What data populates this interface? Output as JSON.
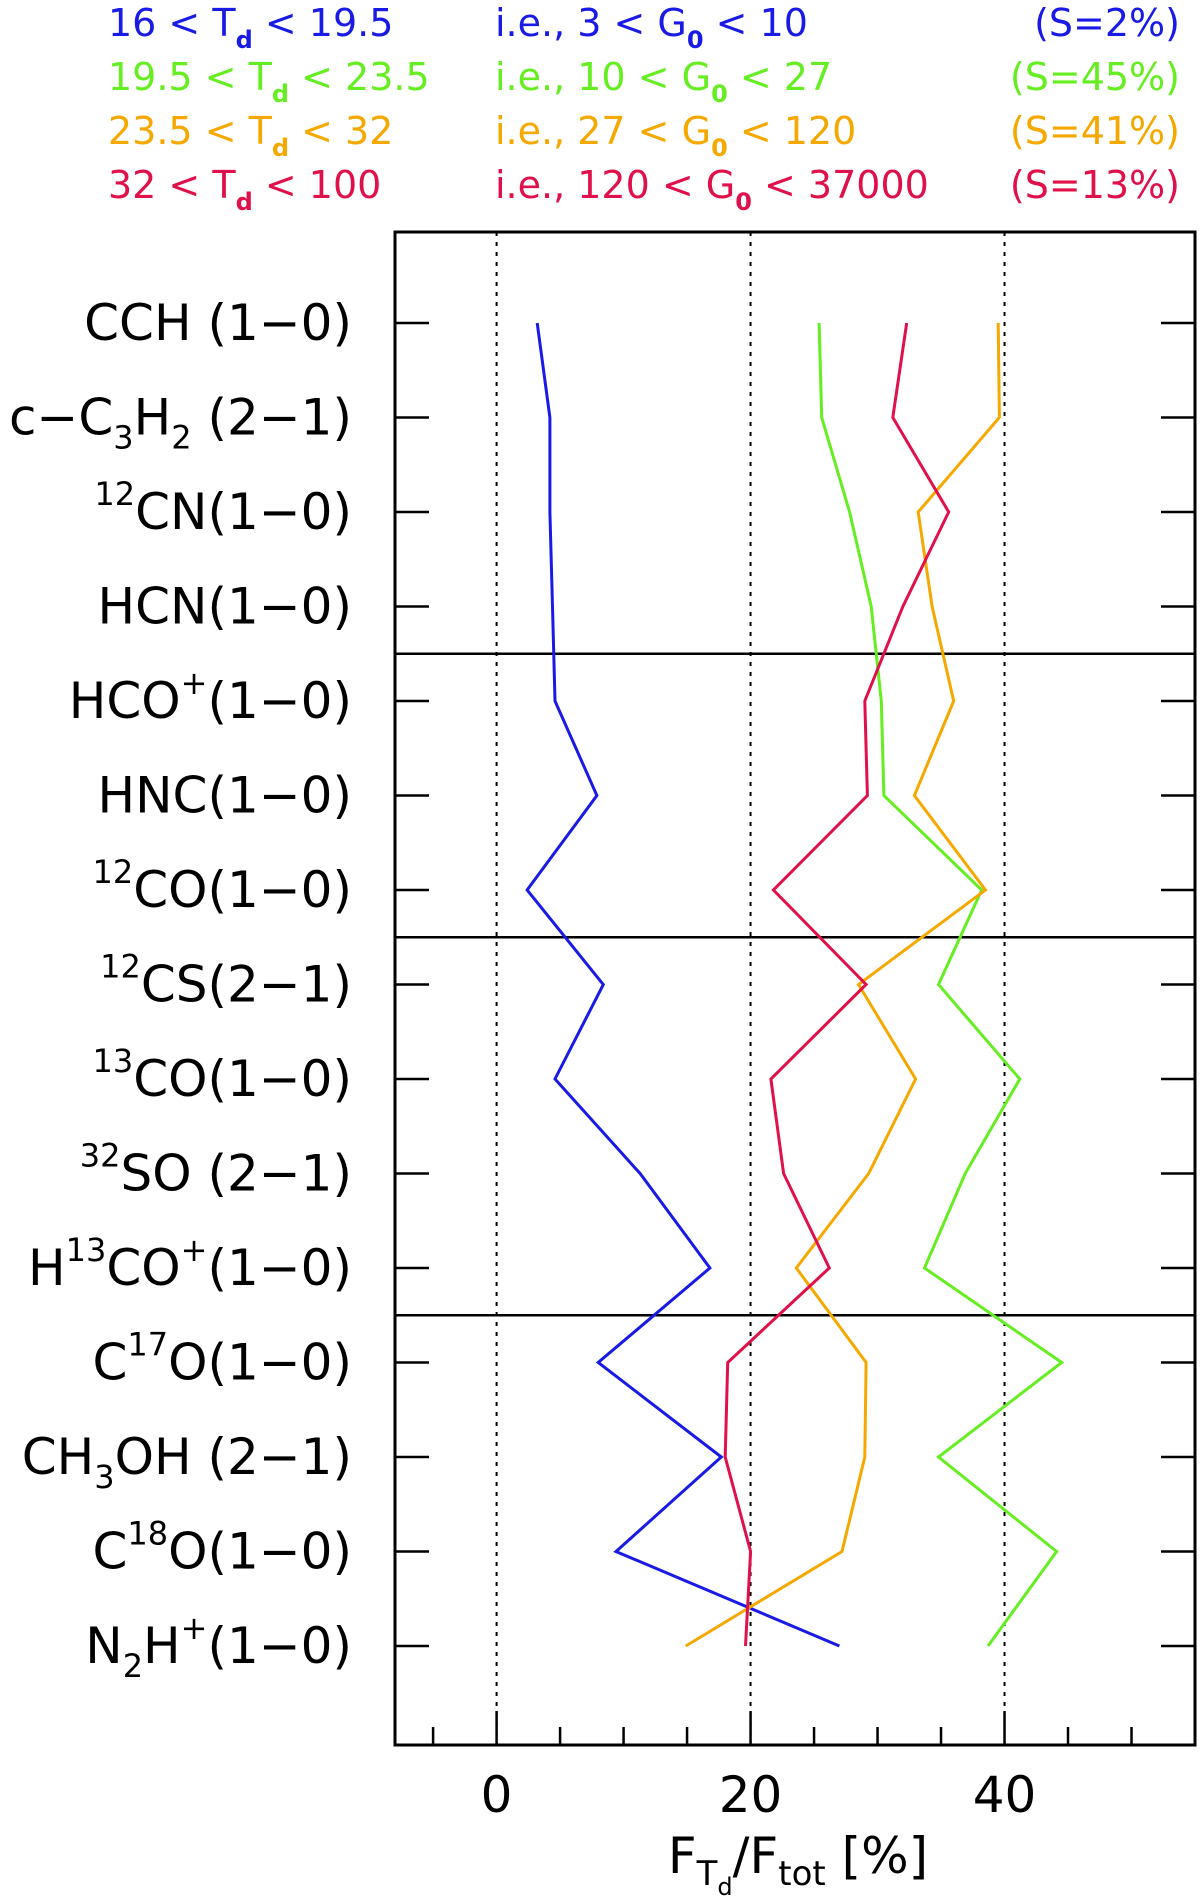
{
  "chart_data": {
    "type": "line",
    "orientation": "horizontal",
    "title": "",
    "xlabel": {
      "main": "F",
      "sub": "T",
      "subsub": "d",
      "rest": "/F",
      "sub2": "tot",
      "unit": "[%]"
    },
    "xlim": [
      -8,
      55
    ],
    "xticks": [
      0,
      20,
      40
    ],
    "xtick_labels": [
      "0",
      "20",
      "40"
    ],
    "minor_xticks": [
      -5,
      5,
      10,
      15,
      25,
      30,
      35,
      45,
      50
    ],
    "vertical_dotted_lines": [
      0,
      20,
      40
    ],
    "group_separator_after_index": [
      3,
      6,
      10
    ],
    "categories": [
      {
        "id": "cch",
        "parts": [
          {
            "t": "CCH (1−0)"
          }
        ]
      },
      {
        "id": "c3h2",
        "parts": [
          {
            "t": "c−C"
          },
          {
            "t": "3",
            "sub": true
          },
          {
            "t": "H"
          },
          {
            "t": "2",
            "sub": true
          },
          {
            "t": " (2−1)"
          }
        ]
      },
      {
        "id": "cn",
        "parts": [
          {
            "t": "12",
            "sup": true
          },
          {
            "t": "CN(1−0)"
          }
        ]
      },
      {
        "id": "hcn",
        "parts": [
          {
            "t": "HCN(1−0)"
          }
        ]
      },
      {
        "id": "hcop",
        "parts": [
          {
            "t": "HCO"
          },
          {
            "t": "+",
            "sup": true
          },
          {
            "t": "(1−0)"
          }
        ]
      },
      {
        "id": "hnc",
        "parts": [
          {
            "t": "HNC(1−0)"
          }
        ]
      },
      {
        "id": "co12",
        "parts": [
          {
            "t": "12",
            "sup": true
          },
          {
            "t": "CO(1−0)"
          }
        ]
      },
      {
        "id": "cs12",
        "parts": [
          {
            "t": "12",
            "sup": true
          },
          {
            "t": "CS(2−1)"
          }
        ]
      },
      {
        "id": "co13",
        "parts": [
          {
            "t": "13",
            "sup": true
          },
          {
            "t": "CO(1−0)"
          }
        ]
      },
      {
        "id": "so32",
        "parts": [
          {
            "t": "32",
            "sup": true
          },
          {
            "t": "SO (2−1)"
          }
        ]
      },
      {
        "id": "h13cop",
        "parts": [
          {
            "t": "H"
          },
          {
            "t": "13",
            "sup": true
          },
          {
            "t": "CO"
          },
          {
            "t": "+",
            "sup": true
          },
          {
            "t": "(1−0)"
          }
        ]
      },
      {
        "id": "c17o",
        "parts": [
          {
            "t": "C"
          },
          {
            "t": "17",
            "sup": true
          },
          {
            "t": "O(1−0)"
          }
        ]
      },
      {
        "id": "ch3oh",
        "parts": [
          {
            "t": "CH"
          },
          {
            "t": "3",
            "sub": true
          },
          {
            "t": "OH (2−1)"
          }
        ]
      },
      {
        "id": "c18o",
        "parts": [
          {
            "t": "C"
          },
          {
            "t": "18",
            "sup": true
          },
          {
            "t": "O(1−0)"
          }
        ]
      },
      {
        "id": "n2hp",
        "parts": [
          {
            "t": "N"
          },
          {
            "t": "2",
            "sub": true
          },
          {
            "t": "H"
          },
          {
            "t": "+",
            "sup": true
          },
          {
            "t": "(1−0)"
          }
        ]
      }
    ],
    "series": [
      {
        "color": "#1a1ae6",
        "legend": {
          "range": [
            "16 < T",
            "d",
            " < 19.5"
          ],
          "ie": [
            "i.e., 3 < G",
            "0",
            " < 10"
          ],
          "share": "(S=2%)"
        },
        "values": [
          3.2,
          4.2,
          4.2,
          4.4,
          4.6,
          7.9,
          2.4,
          8.4,
          4.6,
          11.3,
          16.8,
          8.0,
          17.7,
          9.4,
          27.0
        ]
      },
      {
        "color": "#66ee22",
        "legend": {
          "range": [
            "19.5 < T",
            "d",
            " < 23.5"
          ],
          "ie": [
            "i.e., 10 < G",
            "0",
            " < 27"
          ],
          "share": "(S=45%)"
        },
        "values": [
          25.4,
          25.6,
          27.8,
          29.5,
          30.3,
          30.5,
          38.2,
          34.8,
          41.2,
          36.9,
          33.7,
          44.5,
          34.8,
          44.1,
          38.7
        ]
      },
      {
        "color": "#f5a800",
        "legend": {
          "range": [
            "23.5 < T",
            "d",
            " < 32"
          ],
          "ie": [
            "i.e., 27 < G",
            "0",
            " < 120"
          ],
          "share": "(S=41%)"
        },
        "values": [
          39.5,
          39.6,
          33.2,
          34.3,
          36.0,
          32.9,
          38.5,
          28.5,
          33.0,
          29.3,
          23.6,
          29.1,
          29.0,
          27.2,
          14.9
        ]
      },
      {
        "color": "#e0104a",
        "legend": {
          "range": [
            "32 < T",
            "d",
            " < 100"
          ],
          "ie": [
            "i.e., 120 < G",
            "0",
            " < 37000"
          ],
          "share": "(S=13%)"
        },
        "values": [
          32.3,
          31.2,
          35.6,
          32.0,
          29.0,
          29.2,
          21.8,
          29.1,
          21.6,
          22.6,
          26.2,
          18.2,
          18.0,
          20.0,
          19.6
        ]
      }
    ]
  }
}
